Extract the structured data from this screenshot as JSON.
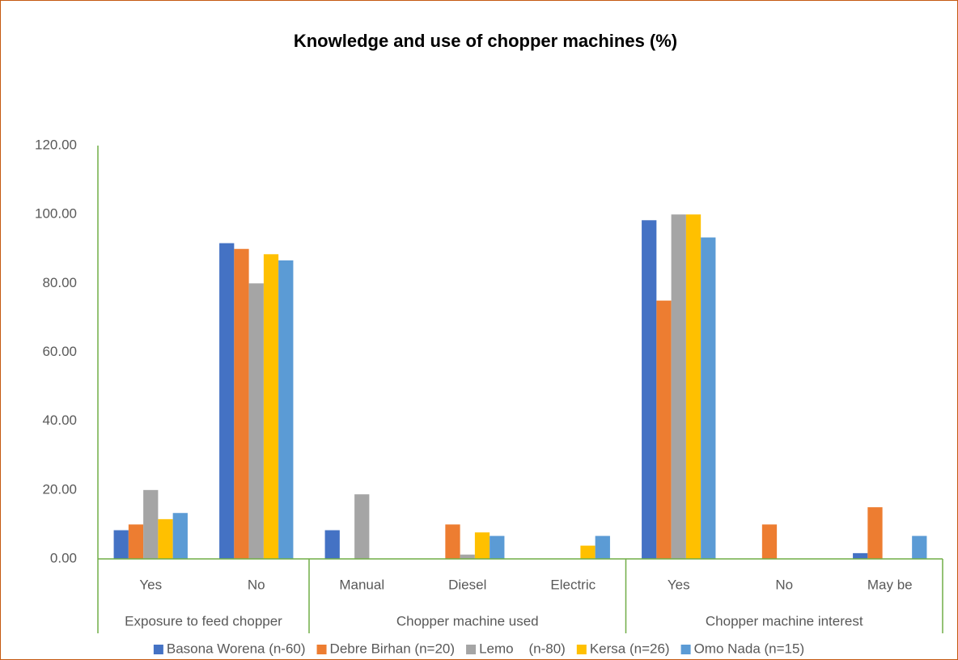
{
  "chart_data": {
    "type": "bar",
    "title": "Knowledge and use of chopper machines (%)",
    "groups": [
      {
        "name": "Exposure to feed chopper",
        "categories": [
          "Yes",
          "No"
        ]
      },
      {
        "name": "Chopper machine used",
        "categories": [
          "Manual",
          "Diesel",
          "Electric"
        ]
      },
      {
        "name": "Chopper machine interest",
        "categories": [
          "Yes",
          "No",
          "May be"
        ]
      }
    ],
    "series": [
      {
        "name": "Basona Worena (n-60)",
        "color": "#4472c4",
        "values": [
          8.33,
          91.67,
          8.33,
          0,
          0,
          98.33,
          0,
          1.67
        ]
      },
      {
        "name": "Debre Birhan (n=20)",
        "color": "#ed7d31",
        "values": [
          10,
          90,
          0,
          10,
          0,
          75,
          10,
          15
        ]
      },
      {
        "name": "Lemo    (n-80)",
        "color": "#a5a5a5",
        "values": [
          20,
          80,
          18.75,
          1.25,
          0,
          100,
          0,
          0
        ]
      },
      {
        "name": "Kersa (n=26)",
        "color": "#ffc000",
        "values": [
          11.54,
          88.46,
          0,
          7.69,
          3.85,
          100,
          0,
          0
        ]
      },
      {
        "name": "Omo Nada (n=15)",
        "color": "#5b9bd5",
        "values": [
          13.33,
          86.67,
          0,
          6.67,
          6.67,
          93.33,
          0,
          6.67
        ]
      }
    ],
    "ylim": [
      0,
      120
    ],
    "yticks": [
      {
        "value": 0,
        "label": "0.00"
      },
      {
        "value": 20,
        "label": "20.00"
      },
      {
        "value": 40,
        "label": "40.00"
      },
      {
        "value": 60,
        "label": "60.00"
      },
      {
        "value": 80,
        "label": "80.00"
      },
      {
        "value": 100,
        "label": "100.00"
      },
      {
        "value": 120,
        "label": "120.00"
      }
    ],
    "grid": false,
    "legend": "bottom"
  }
}
